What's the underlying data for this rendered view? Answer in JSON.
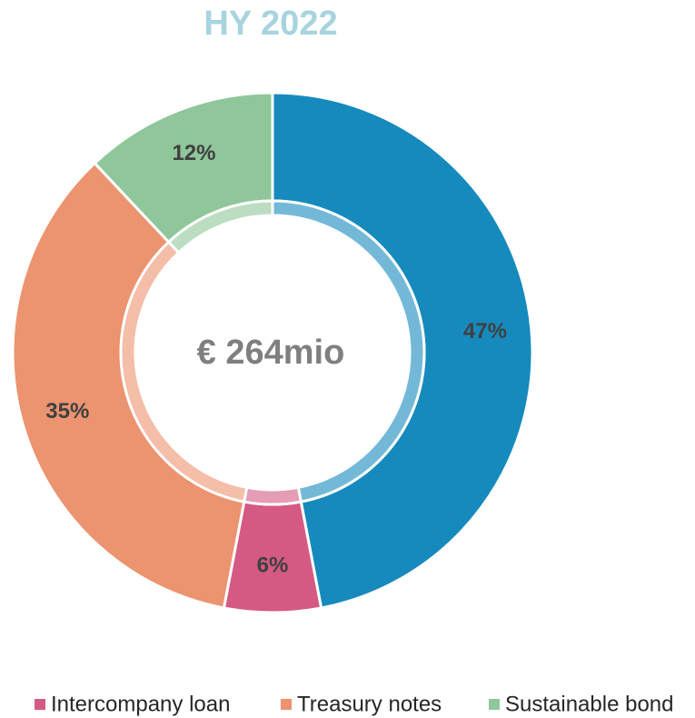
{
  "chart_data": {
    "type": "donut",
    "title": "HY 2022",
    "title_color": "#a6d4df",
    "center_label": "€ 264mio",
    "categories": [
      null,
      "Intercompany loan",
      "Treasury notes",
      "Sustainable bond"
    ],
    "values": [
      47,
      6,
      35,
      12
    ],
    "value_labels": [
      "47%",
      "6%",
      "35%",
      "12%"
    ],
    "colors": [
      "#168abd",
      "#d45a84",
      "#ec936f",
      "#8fc79a"
    ],
    "legend": "bottom"
  }
}
